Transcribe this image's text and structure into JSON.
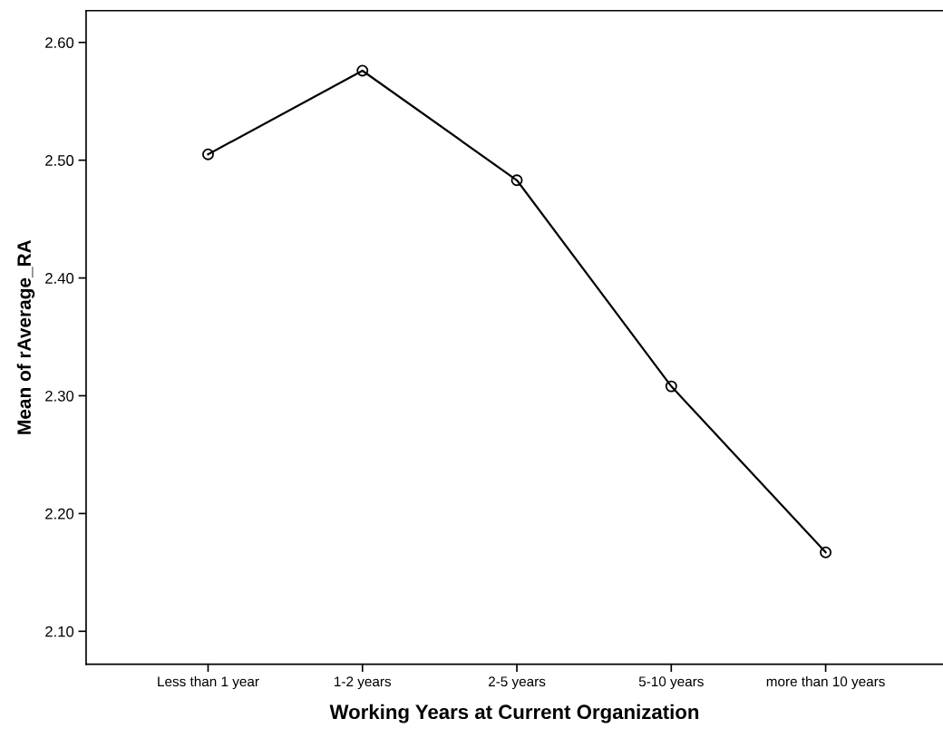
{
  "chart_data": {
    "type": "line",
    "xlabel": "Working Years at Current Organization",
    "ylabel": "Mean of rAverage_RA",
    "categories": [
      "Less than 1 year",
      "1-2 years",
      "2-5 years",
      "5-10 years",
      "more than 10 years"
    ],
    "series": [
      {
        "color": "#000000",
        "values": [
          2.505,
          2.576,
          2.483,
          2.308,
          2.167
        ]
      }
    ],
    "ylim": [
      2.072,
      2.627
    ],
    "yticks": [
      {
        "value": 2.1,
        "label": "2.10"
      },
      {
        "value": 2.2,
        "label": "2.20"
      },
      {
        "value": 2.3,
        "label": "2.30"
      },
      {
        "value": 2.4,
        "label": "2.40"
      },
      {
        "value": 2.5,
        "label": "2.50"
      },
      {
        "value": 2.6,
        "label": "2.60"
      }
    ],
    "marker": "circle",
    "line_style": "solid",
    "grid": false
  }
}
